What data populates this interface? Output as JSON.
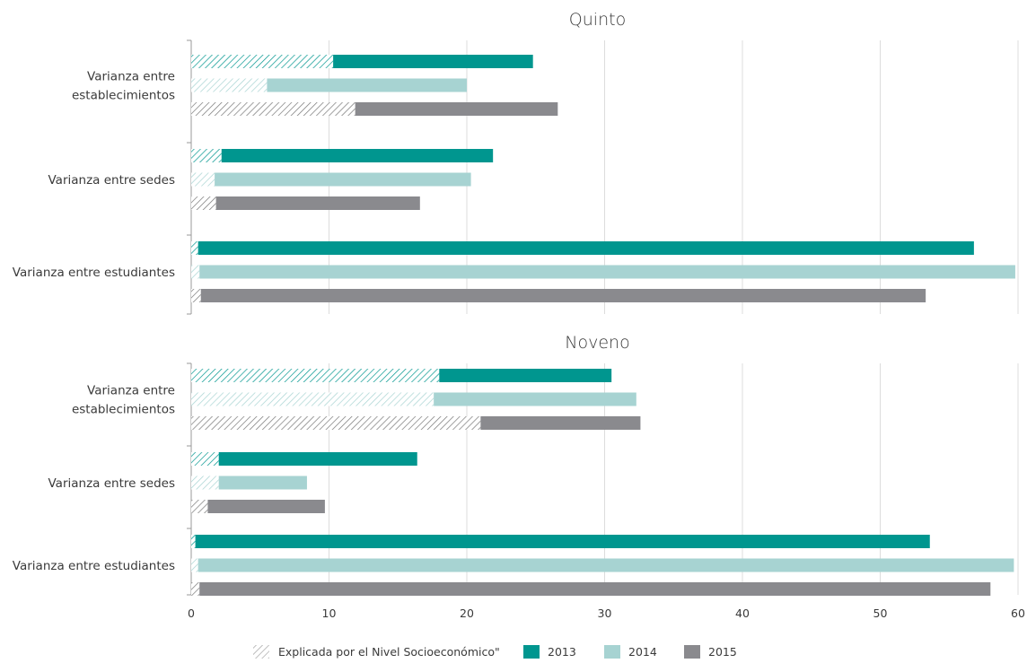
{
  "colors": {
    "2013": "#00968f",
    "2014": "#a7d3d2",
    "2015": "#8a8a8e",
    "grid": "#dcdcdc",
    "axis": "#999999"
  },
  "legend": {
    "explained_label": "Explicada por el Nivel Socioeconómico\"",
    "series_labels": [
      "2013",
      "2014",
      "2015"
    ]
  },
  "chart_data": {
    "type": "bar",
    "orientation": "horizontal",
    "xlim": [
      0,
      60
    ],
    "x_ticks": [
      0,
      10,
      20,
      30,
      40,
      50,
      60
    ],
    "grid": true,
    "legend_position": "bottom",
    "panels": [
      {
        "title": "Quinto",
        "categories": [
          [
            "Varianza entre",
            "establecimientos"
          ],
          [
            "Varianza entre sedes"
          ],
          [
            "Varianza entre estudiantes"
          ]
        ],
        "series": [
          {
            "name": "2013",
            "total": [
              24.8,
              21.9,
              56.8
            ],
            "explained": [
              10.3,
              2.2,
              0.5
            ]
          },
          {
            "name": "2014",
            "total": [
              20.0,
              20.3,
              59.8
            ],
            "explained": [
              5.5,
              1.7,
              0.6
            ]
          },
          {
            "name": "2015",
            "total": [
              26.6,
              16.6,
              53.3
            ],
            "explained": [
              11.9,
              1.8,
              0.7
            ]
          }
        ]
      },
      {
        "title": "Noveno",
        "categories": [
          [
            "Varianza entre",
            "establecimientos"
          ],
          [
            "Varianza entre sedes"
          ],
          [
            "Varianza entre estudiantes"
          ]
        ],
        "series": [
          {
            "name": "2013",
            "total": [
              30.5,
              16.4,
              53.6
            ],
            "explained": [
              18.0,
              2.0,
              0.3
            ]
          },
          {
            "name": "2014",
            "total": [
              32.3,
              8.4,
              59.7
            ],
            "explained": [
              17.6,
              2.0,
              0.5
            ]
          },
          {
            "name": "2015",
            "total": [
              32.6,
              9.7,
              58.0
            ],
            "explained": [
              21.0,
              1.2,
              0.6
            ]
          }
        ]
      }
    ]
  }
}
